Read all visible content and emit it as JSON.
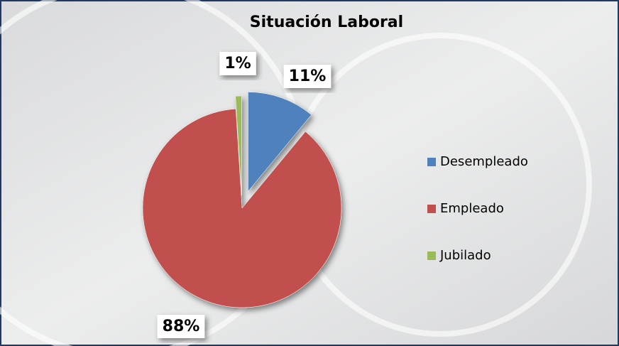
{
  "chart_data": {
    "type": "pie",
    "title": "Situación Laboral",
    "categories": [
      "Desempleado",
      "Empleado",
      "Jubilado"
    ],
    "values": [
      11,
      88,
      1
    ],
    "value_labels": [
      "11%",
      "88%",
      "1%"
    ],
    "colors": [
      "#4f81bd",
      "#c0504d",
      "#9bbb59"
    ],
    "legend": "right"
  }
}
